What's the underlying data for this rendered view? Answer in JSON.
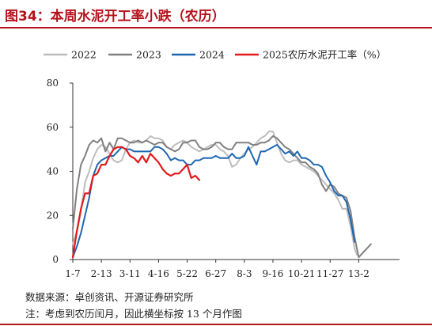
{
  "header": {
    "title": "图34：本周水泥开工率小跌（农历）"
  },
  "notes": {
    "source": "数据来源：卓创资讯、开源证券研究所",
    "remark": "注：考虑到农历闰月，因此横坐标按 13 个月作图"
  },
  "chart_data": {
    "type": "line",
    "ylabel": "",
    "ylim": [
      0,
      80
    ],
    "yticks": [
      0,
      20,
      40,
      60,
      80
    ],
    "xlim": [
      0,
      40
    ],
    "xticks": [
      {
        "x": 0,
        "label": "1-7"
      },
      {
        "x": 3.5,
        "label": "2-13"
      },
      {
        "x": 7,
        "label": "3-11"
      },
      {
        "x": 10.5,
        "label": "4-16"
      },
      {
        "x": 14,
        "label": "5-22"
      },
      {
        "x": 17.5,
        "label": "6-27"
      },
      {
        "x": 21,
        "label": "8-3"
      },
      {
        "x": 24.5,
        "label": "9-16"
      },
      {
        "x": 28,
        "label": "10-21"
      },
      {
        "x": 31.5,
        "label": "11-27"
      },
      {
        "x": 35,
        "label": "13-2"
      }
    ],
    "legend_position": "top",
    "grid": false,
    "series": [
      {
        "name": "2022",
        "color": "#bdbdbd",
        "points": [
          [
            0,
            7
          ],
          [
            0.6,
            14
          ],
          [
            1,
            22
          ],
          [
            1.5,
            35
          ],
          [
            2,
            40
          ],
          [
            2.5,
            46
          ],
          [
            3,
            50
          ],
          [
            3.5,
            52
          ],
          [
            4,
            51
          ],
          [
            4.5,
            48
          ],
          [
            5,
            45
          ],
          [
            5.5,
            44
          ],
          [
            6,
            45
          ],
          [
            6.5,
            50
          ],
          [
            7,
            53
          ],
          [
            7.5,
            54
          ],
          [
            8,
            53
          ],
          [
            8.5,
            53
          ],
          [
            9,
            54
          ],
          [
            9.5,
            56
          ],
          [
            10,
            55
          ],
          [
            10.5,
            55
          ],
          [
            11,
            54
          ],
          [
            11.5,
            51
          ],
          [
            12,
            50
          ],
          [
            12.5,
            52
          ],
          [
            13,
            53
          ],
          [
            13.5,
            54
          ],
          [
            14,
            53
          ],
          [
            14.5,
            51
          ],
          [
            15,
            50
          ],
          [
            15.5,
            49
          ],
          [
            16,
            50
          ],
          [
            16.5,
            51
          ],
          [
            17,
            52
          ],
          [
            17.5,
            52
          ],
          [
            18,
            50
          ],
          [
            18.5,
            49
          ],
          [
            19,
            47
          ],
          [
            19.5,
            42
          ],
          [
            20,
            43
          ],
          [
            20.5,
            46
          ],
          [
            21,
            48
          ],
          [
            21.5,
            50
          ],
          [
            22,
            51
          ],
          [
            22.5,
            53
          ],
          [
            23,
            55
          ],
          [
            23.5,
            56
          ],
          [
            24,
            58
          ],
          [
            24.5,
            58
          ],
          [
            25,
            53
          ],
          [
            25.5,
            48
          ],
          [
            26,
            45
          ],
          [
            26.5,
            44
          ],
          [
            27,
            45
          ],
          [
            27.5,
            45
          ],
          [
            28,
            43
          ],
          [
            28.5,
            42
          ],
          [
            29,
            41
          ],
          [
            29.5,
            40
          ],
          [
            30,
            38
          ],
          [
            30.5,
            36
          ],
          [
            31,
            34
          ],
          [
            31.5,
            32
          ],
          [
            32,
            30
          ],
          [
            32.5,
            27
          ],
          [
            33,
            23
          ],
          [
            33.5,
            23
          ],
          [
            34,
            15
          ],
          [
            34.5,
            5
          ],
          [
            34.8,
            2
          ]
        ]
      },
      {
        "name": "2023",
        "color": "#808080",
        "points": [
          [
            0,
            14
          ],
          [
            0.5,
            32
          ],
          [
            1,
            43
          ],
          [
            1.5,
            47
          ],
          [
            2,
            52
          ],
          [
            2.5,
            54
          ],
          [
            3,
            53
          ],
          [
            3.5,
            55
          ],
          [
            4,
            49
          ],
          [
            4.5,
            53
          ],
          [
            5,
            50
          ],
          [
            5.5,
            55
          ],
          [
            6,
            55
          ],
          [
            6.5,
            54
          ],
          [
            7,
            53
          ],
          [
            7.5,
            53
          ],
          [
            8,
            54
          ],
          [
            8.5,
            53
          ],
          [
            9,
            54
          ],
          [
            9.5,
            53
          ],
          [
            10,
            52
          ],
          [
            10.5,
            53
          ],
          [
            11,
            53
          ],
          [
            11.5,
            51
          ],
          [
            12,
            50
          ],
          [
            12.5,
            49
          ],
          [
            13,
            50
          ],
          [
            13.5,
            53
          ],
          [
            14,
            53
          ],
          [
            14.5,
            54
          ],
          [
            15,
            54
          ],
          [
            15.5,
            51
          ],
          [
            16,
            50
          ],
          [
            16.5,
            50
          ],
          [
            17,
            51
          ],
          [
            17.5,
            53
          ],
          [
            18,
            53
          ],
          [
            18.5,
            51
          ],
          [
            19,
            50
          ],
          [
            19.5,
            50
          ],
          [
            20,
            53
          ],
          [
            20.5,
            53
          ],
          [
            21,
            53
          ],
          [
            21.5,
            53
          ],
          [
            22,
            52
          ],
          [
            22.5,
            52
          ],
          [
            23,
            53
          ],
          [
            23.5,
            53
          ],
          [
            24,
            54
          ],
          [
            24.5,
            56
          ],
          [
            25,
            55
          ],
          [
            25.5,
            53
          ],
          [
            26,
            51
          ],
          [
            26.5,
            50
          ],
          [
            27,
            48
          ],
          [
            27.5,
            46
          ],
          [
            28,
            44
          ],
          [
            28.5,
            44
          ],
          [
            29,
            42
          ],
          [
            29.5,
            41
          ],
          [
            30,
            39
          ],
          [
            30.5,
            34
          ],
          [
            31,
            31
          ],
          [
            31.5,
            34
          ],
          [
            32,
            33
          ],
          [
            32.5,
            30
          ],
          [
            33,
            29
          ],
          [
            33.5,
            28
          ],
          [
            34,
            22
          ],
          [
            34.5,
            10
          ],
          [
            35,
            1
          ],
          [
            35.5,
            3
          ],
          [
            36,
            5
          ],
          [
            36.5,
            7
          ]
        ]
      },
      {
        "name": "2024",
        "color": "#1f67b1",
        "points": [
          [
            0,
            1
          ],
          [
            0.5,
            6
          ],
          [
            1,
            12
          ],
          [
            1.5,
            20
          ],
          [
            2,
            28
          ],
          [
            2.5,
            38
          ],
          [
            3,
            43
          ],
          [
            3.5,
            45
          ],
          [
            4,
            46
          ],
          [
            4.5,
            47
          ],
          [
            5,
            47
          ],
          [
            5.5,
            49
          ],
          [
            6,
            51
          ],
          [
            6.5,
            50
          ],
          [
            7,
            50
          ],
          [
            7.5,
            49
          ],
          [
            8,
            49
          ],
          [
            8.5,
            49
          ],
          [
            9,
            49
          ],
          [
            9.5,
            49
          ],
          [
            10,
            51
          ],
          [
            10.5,
            51
          ],
          [
            11,
            50
          ],
          [
            11.5,
            48
          ],
          [
            12,
            45
          ],
          [
            12.5,
            46
          ],
          [
            13,
            45
          ],
          [
            13.5,
            45
          ],
          [
            14,
            43
          ],
          [
            14.5,
            43
          ],
          [
            15,
            45
          ],
          [
            15.5,
            45
          ],
          [
            16,
            46
          ],
          [
            16.5,
            46
          ],
          [
            17,
            46
          ],
          [
            17.5,
            47
          ],
          [
            18,
            46
          ],
          [
            18.5,
            46
          ],
          [
            19,
            46
          ],
          [
            19.5,
            48
          ],
          [
            20,
            46
          ],
          [
            20.5,
            46
          ],
          [
            21,
            47
          ],
          [
            21.5,
            51
          ],
          [
            22,
            47
          ],
          [
            22.5,
            43
          ],
          [
            23,
            49
          ],
          [
            23.5,
            49
          ],
          [
            24,
            50
          ],
          [
            24.5,
            51
          ],
          [
            25,
            52
          ],
          [
            25.5,
            50
          ],
          [
            26,
            48
          ],
          [
            26.5,
            49
          ],
          [
            27,
            47
          ],
          [
            27.5,
            49
          ],
          [
            28,
            46
          ],
          [
            28.5,
            46
          ],
          [
            29,
            45
          ],
          [
            29.5,
            43
          ],
          [
            30,
            43
          ],
          [
            30.5,
            42
          ],
          [
            31,
            38
          ],
          [
            31.5,
            35
          ],
          [
            32,
            31
          ],
          [
            32.5,
            29
          ],
          [
            33,
            29
          ],
          [
            33.5,
            26
          ],
          [
            34,
            18
          ],
          [
            34.5,
            8
          ]
        ]
      },
      {
        "name": "2025农历水泥开工率（%）",
        "color": "#e31a1c",
        "points": [
          [
            0,
            1
          ],
          [
            0.5,
            13
          ],
          [
            1,
            23
          ],
          [
            1.5,
            30
          ],
          [
            2,
            30
          ],
          [
            2.5,
            38
          ],
          [
            3,
            39
          ],
          [
            3.5,
            43
          ],
          [
            4,
            43
          ],
          [
            4.5,
            47
          ],
          [
            5,
            50
          ],
          [
            5.5,
            51
          ],
          [
            6,
            51
          ],
          [
            6.5,
            50
          ],
          [
            7,
            47
          ],
          [
            7.5,
            46
          ],
          [
            8,
            44
          ],
          [
            8.5,
            47
          ],
          [
            9,
            44
          ],
          [
            9.5,
            48
          ],
          [
            10,
            46
          ],
          [
            10.5,
            44
          ],
          [
            11,
            41
          ],
          [
            11.5,
            39
          ],
          [
            12,
            38
          ],
          [
            12.5,
            39
          ],
          [
            13,
            39
          ],
          [
            13.5,
            41
          ],
          [
            14,
            43
          ],
          [
            14.5,
            37
          ],
          [
            15,
            38
          ],
          [
            15.5,
            36
          ]
        ]
      }
    ]
  }
}
